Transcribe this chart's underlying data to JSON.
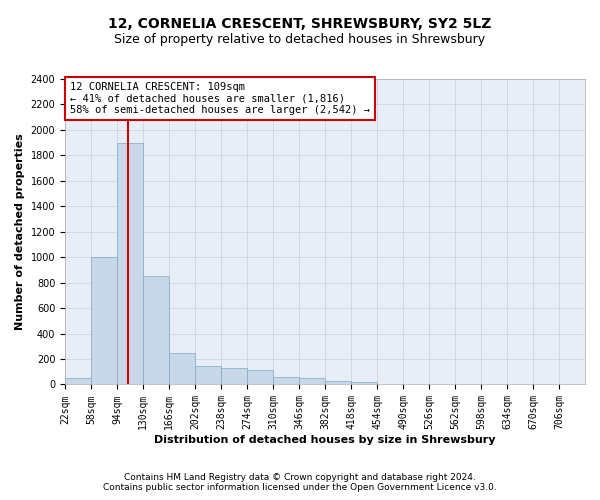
{
  "title": "12, CORNELIA CRESCENT, SHREWSBURY, SY2 5LZ",
  "subtitle": "Size of property relative to detached houses in Shrewsbury",
  "xlabel": "Distribution of detached houses by size in Shrewsbury",
  "ylabel": "Number of detached properties",
  "footer_line1": "Contains HM Land Registry data © Crown copyright and database right 2024.",
  "footer_line2": "Contains public sector information licensed under the Open Government Licence v3.0.",
  "property_size": 109,
  "property_label": "12 CORNELIA CRESCENT: 109sqm",
  "annotation_line1": "← 41% of detached houses are smaller (1,816)",
  "annotation_line2": "58% of semi-detached houses are larger (2,542) →",
  "bin_starts": [
    22,
    58,
    94,
    130,
    166,
    202,
    238,
    274,
    310,
    346,
    382,
    418,
    454,
    490,
    526,
    562,
    598,
    634,
    670,
    706
  ],
  "bin_width": 36,
  "bar_counts": [
    50,
    1000,
    1900,
    850,
    250,
    145,
    130,
    110,
    60,
    50,
    30,
    20,
    0,
    0,
    0,
    0,
    0,
    0,
    0,
    0
  ],
  "bar_color": "#c8d8e8",
  "bar_edge_color": "#7aaac8",
  "grid_color": "#d0d8e8",
  "bg_color": "#e8eef5",
  "vline_color": "#cc0000",
  "annotation_box_color": "#cc0000",
  "ylim": [
    0,
    2400
  ],
  "yticks": [
    0,
    200,
    400,
    600,
    800,
    1000,
    1200,
    1400,
    1600,
    1800,
    2000,
    2200,
    2400
  ],
  "title_fontsize": 10,
  "subtitle_fontsize": 9,
  "axis_label_fontsize": 8,
  "tick_fontsize": 7,
  "annotation_fontsize": 7.5,
  "footer_fontsize": 6.5
}
